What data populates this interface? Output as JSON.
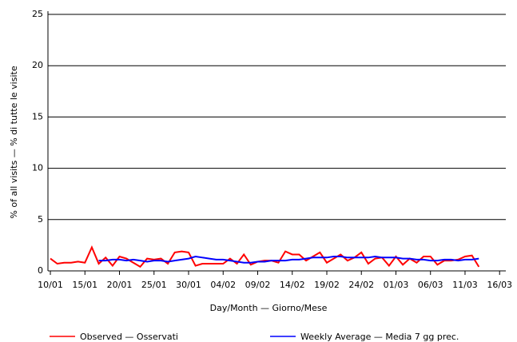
{
  "chart_data": {
    "type": "line",
    "y_label": "% of all visits — % di tutte le visite",
    "x_label": "Day/Month — Giorno/Mese",
    "x": [
      0,
      1,
      2,
      3,
      4,
      5,
      6,
      7,
      8,
      9,
      10,
      11,
      12,
      13,
      14,
      15,
      16,
      17,
      18,
      19,
      20,
      21,
      22,
      23,
      24,
      25,
      26,
      27,
      28,
      29,
      30,
      31,
      32,
      33,
      34,
      35,
      36,
      37,
      38,
      39,
      40,
      41,
      42,
      43,
      44,
      45,
      46,
      47,
      48,
      49,
      50,
      51,
      52,
      53,
      54,
      55,
      56,
      57,
      58,
      59,
      60,
      61,
      62
    ],
    "series": [
      {
        "name": "Observed — Osservati",
        "color": "#ff0000",
        "values": [
          1.2,
          0.7,
          0.8,
          0.8,
          0.9,
          0.8,
          2.3,
          0.7,
          1.3,
          0.5,
          1.4,
          1.2,
          0.8,
          0.4,
          1.2,
          1.1,
          1.2,
          0.7,
          1.8,
          1.9,
          1.8,
          0.5,
          0.7,
          0.7,
          0.7,
          0.7,
          1.2,
          0.7,
          1.6,
          0.6,
          0.9,
          1.0,
          1.0,
          0.8,
          1.9,
          1.6,
          1.6,
          1.0,
          1.4,
          1.8,
          0.8,
          1.2,
          1.6,
          1.0,
          1.3,
          1.8,
          0.7,
          1.2,
          1.3,
          0.5,
          1.4,
          0.6,
          1.2,
          0.8,
          1.4,
          1.4,
          0.6,
          1.0,
          1.0,
          1.1,
          1.4,
          1.5,
          0.4
        ]
      },
      {
        "name": "Weekly Average — Media 7 gg prec.",
        "color": "#0000ff",
        "values": [
          null,
          null,
          null,
          null,
          null,
          null,
          null,
          1.0,
          1.0,
          1.1,
          1.1,
          1.0,
          1.1,
          1.0,
          0.9,
          1.0,
          1.0,
          0.9,
          1.0,
          1.1,
          1.2,
          1.4,
          1.3,
          1.2,
          1.1,
          1.1,
          1.0,
          0.9,
          0.8,
          0.8,
          0.9,
          0.9,
          1.0,
          1.0,
          1.0,
          1.1,
          1.1,
          1.2,
          1.3,
          1.3,
          1.3,
          1.4,
          1.4,
          1.3,
          1.3,
          1.3,
          1.3,
          1.4,
          1.3,
          1.3,
          1.3,
          1.2,
          1.2,
          1.1,
          1.1,
          1.0,
          1.0,
          1.1,
          1.1,
          1.0,
          1.1,
          1.1,
          1.2
        ]
      }
    ],
    "xlim": [
      -0.35,
      65.9
    ],
    "xticks": [
      {
        "value": 0,
        "label": "10/01"
      },
      {
        "value": 5,
        "label": "15/01"
      },
      {
        "value": 10,
        "label": "20/01"
      },
      {
        "value": 15,
        "label": "25/01"
      },
      {
        "value": 20,
        "label": "30/01"
      },
      {
        "value": 25,
        "label": "04/02"
      },
      {
        "value": 30,
        "label": "09/02"
      },
      {
        "value": 35,
        "label": "14/02"
      },
      {
        "value": 40,
        "label": "19/02"
      },
      {
        "value": 45,
        "label": "24/02"
      },
      {
        "value": 50,
        "label": "01/03"
      },
      {
        "value": 55,
        "label": "06/03"
      },
      {
        "value": 60,
        "label": "11/03"
      },
      {
        "value": 65,
        "label": "16/03"
      }
    ],
    "ylim": [
      0,
      25
    ],
    "yticks": [
      0,
      5,
      10,
      15,
      20,
      25
    ],
    "grid": true
  }
}
